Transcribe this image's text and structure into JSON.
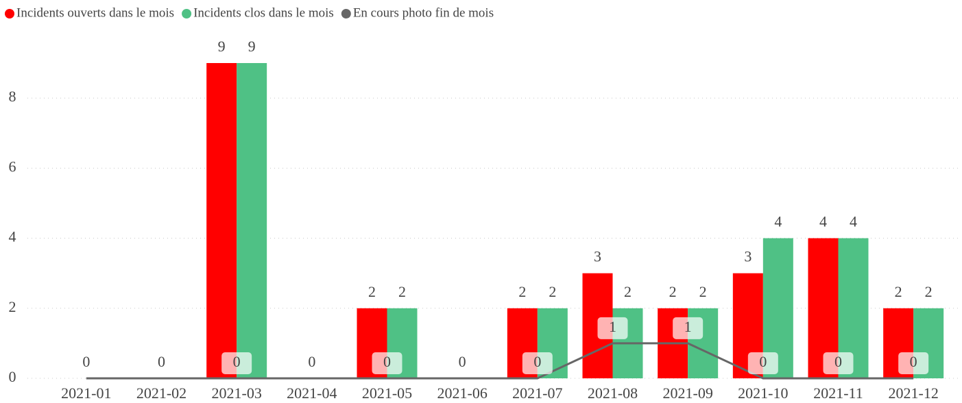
{
  "chart_data": {
    "type": "bar",
    "categories": [
      "2021-01",
      "2021-02",
      "2021-03",
      "2021-04",
      "2021-05",
      "2021-06",
      "2021-07",
      "2021-08",
      "2021-09",
      "2021-10",
      "2021-11",
      "2021-12"
    ],
    "series": [
      {
        "name": "Incidents ouverts dans le mois",
        "color": "#ff0000",
        "type": "bar",
        "values": [
          0,
          0,
          9,
          0,
          2,
          0,
          2,
          3,
          2,
          3,
          4,
          2
        ]
      },
      {
        "name": "Incidents clos dans le mois",
        "color": "#4fc185",
        "type": "bar",
        "values": [
          0,
          0,
          9,
          0,
          2,
          0,
          2,
          2,
          2,
          4,
          4,
          2
        ]
      },
      {
        "name": "En cours photo fin de mois",
        "color": "#666666",
        "type": "line",
        "values": [
          0,
          0,
          0,
          0,
          0,
          0,
          0,
          1,
          1,
          0,
          0,
          0
        ]
      }
    ],
    "ylim": [
      0,
      9
    ],
    "yticks": [
      0,
      2,
      4,
      6,
      8
    ],
    "grid": true,
    "legend": "top-left"
  }
}
